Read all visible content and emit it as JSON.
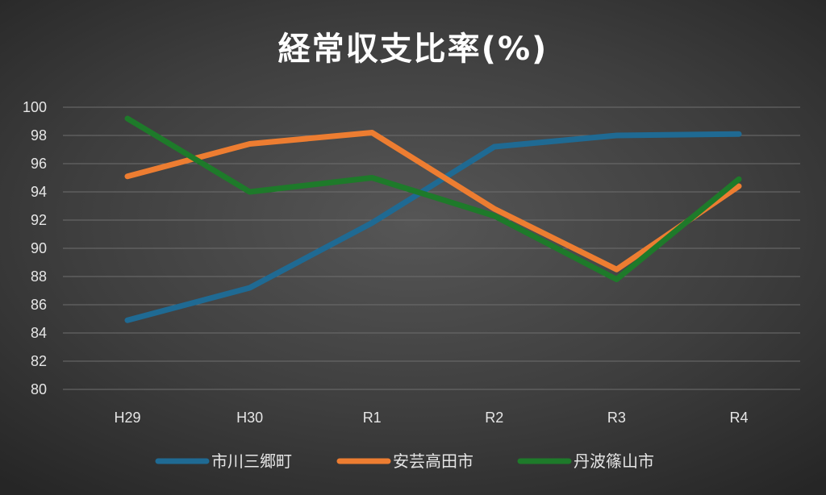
{
  "chart_data": {
    "type": "line",
    "title": "経常収支比率(%)",
    "categories": [
      "H29",
      "H30",
      "R1",
      "R2",
      "R3",
      "R4"
    ],
    "ylim": [
      80,
      100
    ],
    "yticks": [
      80,
      82,
      84,
      86,
      88,
      90,
      92,
      94,
      96,
      98,
      100
    ],
    "grid": true,
    "legend_position": "bottom",
    "series": [
      {
        "name": "市川三郷町",
        "color": "#1f6a93",
        "values": [
          84.9,
          87.2,
          91.8,
          97.2,
          98.0,
          98.1
        ]
      },
      {
        "name": "安芸高田市",
        "color": "#ed7d31",
        "values": [
          95.1,
          97.4,
          98.2,
          92.8,
          88.5,
          94.4
        ]
      },
      {
        "name": "丹波篠山市",
        "color": "#1e7a2a",
        "values": [
          99.2,
          94.0,
          95.0,
          92.3,
          87.8,
          94.9
        ]
      }
    ]
  }
}
